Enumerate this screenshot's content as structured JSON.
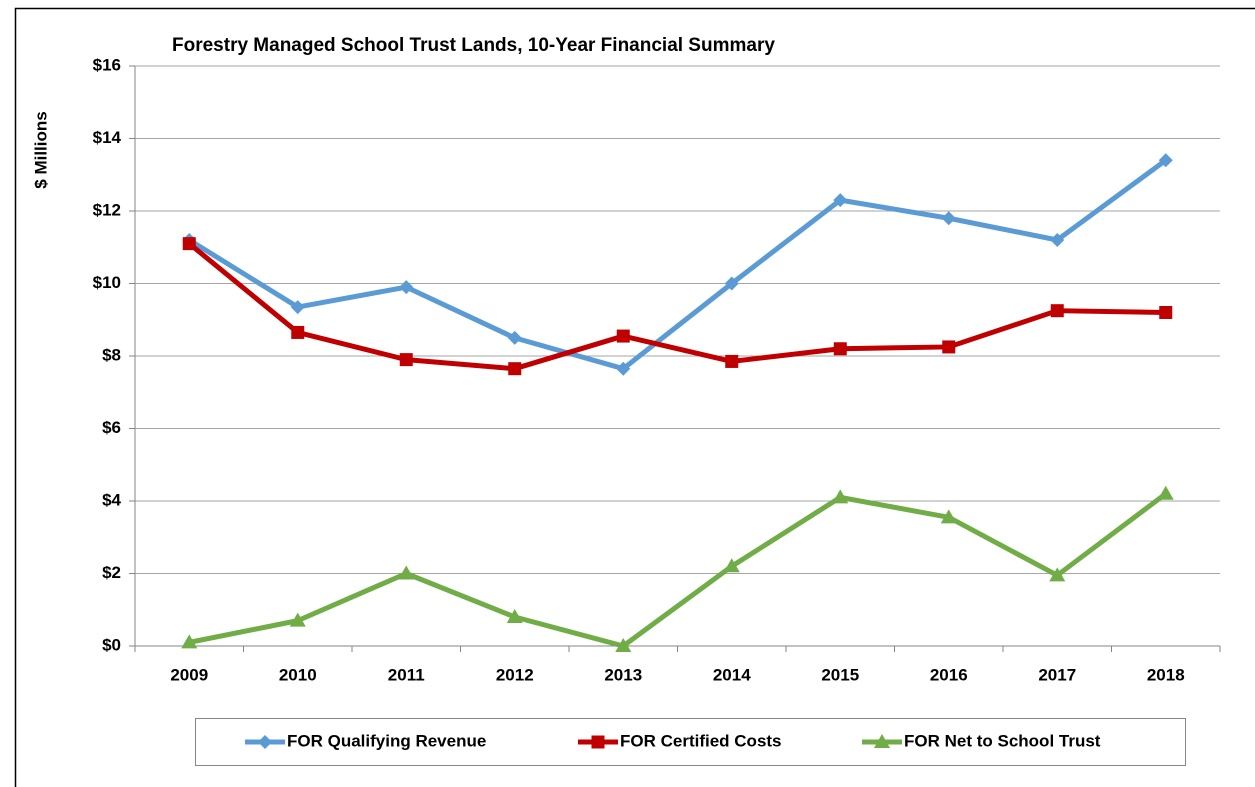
{
  "chart_data": {
    "type": "line",
    "title": "Forestry Managed School Trust Lands, 10-Year Financial Summary",
    "y_label": "$ Millions",
    "categories": [
      "2009",
      "2010",
      "2011",
      "2012",
      "2013",
      "2014",
      "2015",
      "2016",
      "2017",
      "2018"
    ],
    "series": [
      {
        "name": "FOR Qualifying Revenue",
        "color": "#5b9bd5",
        "marker": "diamond",
        "values": [
          11.2,
          9.35,
          9.9,
          8.5,
          7.65,
          10.0,
          12.3,
          11.8,
          11.2,
          13.4
        ]
      },
      {
        "name": "FOR Certified Costs",
        "color": "#c00000",
        "marker": "square",
        "values": [
          11.1,
          8.65,
          7.9,
          7.65,
          8.55,
          7.85,
          8.2,
          8.25,
          9.25,
          9.2
        ]
      },
      {
        "name": "FOR Net to School Trust",
        "color": "#70ad47",
        "marker": "triangle",
        "values": [
          0.1,
          0.7,
          2.0,
          0.8,
          0.0,
          2.2,
          4.1,
          3.55,
          1.95,
          4.2
        ]
      }
    ],
    "ylim": [
      0,
      16
    ],
    "yticks": [
      {
        "value": 0,
        "label": "$0"
      },
      {
        "value": 2,
        "label": "$2"
      },
      {
        "value": 4,
        "label": "$4"
      },
      {
        "value": 6,
        "label": "$6"
      },
      {
        "value": 8,
        "label": "$8"
      },
      {
        "value": 10,
        "label": "$10"
      },
      {
        "value": 12,
        "label": "$12"
      },
      {
        "value": 14,
        "label": "$14"
      },
      {
        "value": 16,
        "label": "$16"
      }
    ],
    "grid": true,
    "legend": "bottom"
  }
}
